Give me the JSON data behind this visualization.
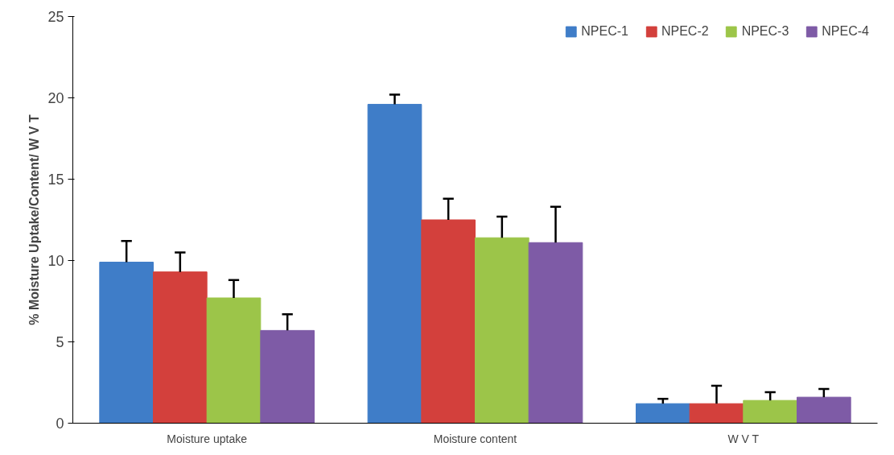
{
  "chart_data": {
    "type": "bar",
    "ylabel": "% Moisture Uptake/Content/ W V T",
    "categories": [
      "Moisture uptake",
      "Moisture content",
      "W V T"
    ],
    "series": [
      {
        "name": "NPEC-1",
        "color": "#3f7dc8",
        "values": [
          9.9,
          19.6,
          1.2
        ],
        "errors": [
          [
            9.9,
            11.2
          ],
          [
            19.6,
            20.2
          ],
          [
            1.2,
            1.5
          ]
        ]
      },
      {
        "name": "NPEC-2",
        "color": "#d3403c",
        "values": [
          9.3,
          12.5,
          1.2
        ],
        "errors": [
          [
            9.3,
            10.5
          ],
          [
            12.5,
            13.8
          ],
          [
            1.2,
            2.3
          ]
        ]
      },
      {
        "name": "NPEC-3",
        "color": "#9cc549",
        "values": [
          7.7,
          11.4,
          1.4
        ],
        "errors": [
          [
            7.7,
            8.8
          ],
          [
            11.4,
            12.7
          ],
          [
            1.4,
            1.9
          ]
        ]
      },
      {
        "name": "NPEC-4",
        "color": "#7e5ba6",
        "values": [
          5.7,
          11.1,
          1.6
        ],
        "errors": [
          [
            5.7,
            6.7
          ],
          [
            11.1,
            13.3
          ],
          [
            1.6,
            2.1
          ]
        ]
      }
    ],
    "ylim": [
      0,
      25
    ],
    "yticks": [
      0,
      5,
      10,
      15,
      20,
      25
    ],
    "grid": false,
    "legend": "top right"
  }
}
